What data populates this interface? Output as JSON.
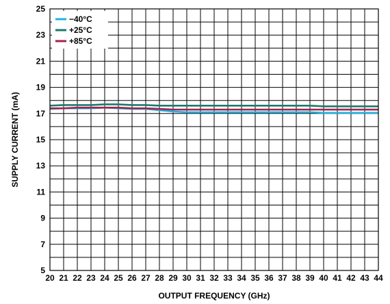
{
  "chart_data": {
    "type": "line",
    "xlabel": "OUTPUT FREQUENCY (GHz)",
    "ylabel": "SUPPLY CURRENT (mA)",
    "xlim": [
      20,
      44
    ],
    "ylim": [
      5,
      25
    ],
    "x_ticks": [
      "20",
      "21",
      "22",
      "23",
      "24",
      "25",
      "26",
      "27",
      "28",
      "29",
      "30",
      "31",
      "32",
      "33",
      "34",
      "35",
      "36",
      "37",
      "38",
      "39",
      "40",
      "41",
      "42",
      "43",
      "44"
    ],
    "y_ticks": [
      "5",
      "7",
      "9",
      "11",
      "13",
      "15",
      "17",
      "19",
      "21",
      "23",
      "25"
    ],
    "grid": true,
    "legend_position": "top-left",
    "x": [
      20,
      21,
      22,
      23,
      24,
      25,
      26,
      27,
      28,
      29,
      30,
      31,
      32,
      33,
      34,
      35,
      36,
      37,
      38,
      39,
      40,
      41,
      42,
      43,
      44
    ],
    "series": [
      {
        "name": "−40°C",
        "color": "#1fb3e0",
        "values": [
          17.35,
          17.4,
          17.4,
          17.4,
          17.45,
          17.4,
          17.35,
          17.35,
          17.25,
          17.15,
          17.1,
          17.1,
          17.1,
          17.1,
          17.1,
          17.1,
          17.1,
          17.1,
          17.1,
          17.1,
          17.05,
          17.05,
          17.05,
          17.05,
          17.05
        ]
      },
      {
        "name": "+25°C",
        "color": "#1a7a6a",
        "values": [
          17.6,
          17.65,
          17.65,
          17.65,
          17.7,
          17.7,
          17.65,
          17.65,
          17.6,
          17.6,
          17.6,
          17.6,
          17.6,
          17.6,
          17.6,
          17.6,
          17.6,
          17.6,
          17.6,
          17.6,
          17.55,
          17.55,
          17.55,
          17.55,
          17.55
        ]
      },
      {
        "name": "+85°C",
        "color": "#a3234f",
        "values": [
          17.4,
          17.4,
          17.45,
          17.45,
          17.45,
          17.45,
          17.4,
          17.4,
          17.35,
          17.3,
          17.3,
          17.3,
          17.3,
          17.3,
          17.3,
          17.3,
          17.3,
          17.3,
          17.3,
          17.3,
          17.3,
          17.3,
          17.3,
          17.3,
          17.3
        ]
      }
    ]
  }
}
